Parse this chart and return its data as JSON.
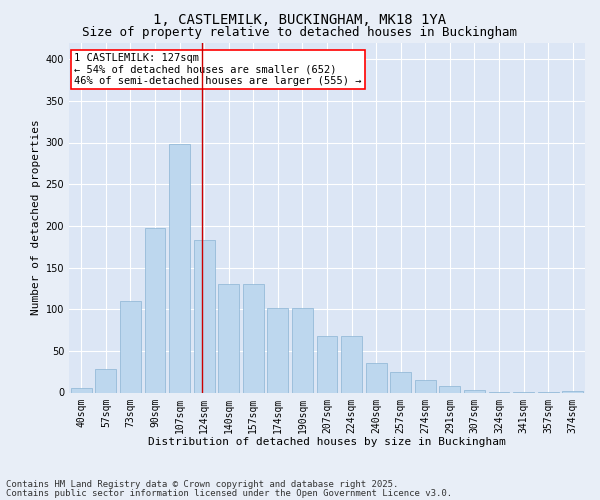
{
  "title_line1": "1, CASTLEMILK, BUCKINGHAM, MK18 1YA",
  "title_line2": "Size of property relative to detached houses in Buckingham",
  "xlabel": "Distribution of detached houses by size in Buckingham",
  "ylabel": "Number of detached properties",
  "categories": [
    "40sqm",
    "57sqm",
    "73sqm",
    "90sqm",
    "107sqm",
    "124sqm",
    "140sqm",
    "157sqm",
    "174sqm",
    "190sqm",
    "207sqm",
    "224sqm",
    "240sqm",
    "257sqm",
    "274sqm",
    "291sqm",
    "307sqm",
    "324sqm",
    "341sqm",
    "357sqm",
    "374sqm"
  ],
  "values": [
    5,
    28,
    110,
    197,
    298,
    183,
    130,
    130,
    101,
    101,
    68,
    68,
    36,
    25,
    15,
    8,
    3,
    1,
    1,
    1,
    2
  ],
  "bar_color": "#bdd7ee",
  "bar_edge_color": "#8ab4d4",
  "vline_pos": 4.93,
  "vline_color": "#cc0000",
  "annotation_text": "1 CASTLEMILK: 127sqm\n← 54% of detached houses are smaller (652)\n46% of semi-detached houses are larger (555) →",
  "ylim": [
    0,
    420
  ],
  "yticks": [
    0,
    50,
    100,
    150,
    200,
    250,
    300,
    350,
    400
  ],
  "background_color": "#e8eef7",
  "plot_bg_color": "#dce6f5",
  "grid_color": "#ffffff",
  "footer_line1": "Contains HM Land Registry data © Crown copyright and database right 2025.",
  "footer_line2": "Contains public sector information licensed under the Open Government Licence v3.0.",
  "title_fontsize": 10,
  "subtitle_fontsize": 9,
  "axis_label_fontsize": 8,
  "tick_fontsize": 7,
  "annot_fontsize": 7.5,
  "footer_fontsize": 6.5
}
